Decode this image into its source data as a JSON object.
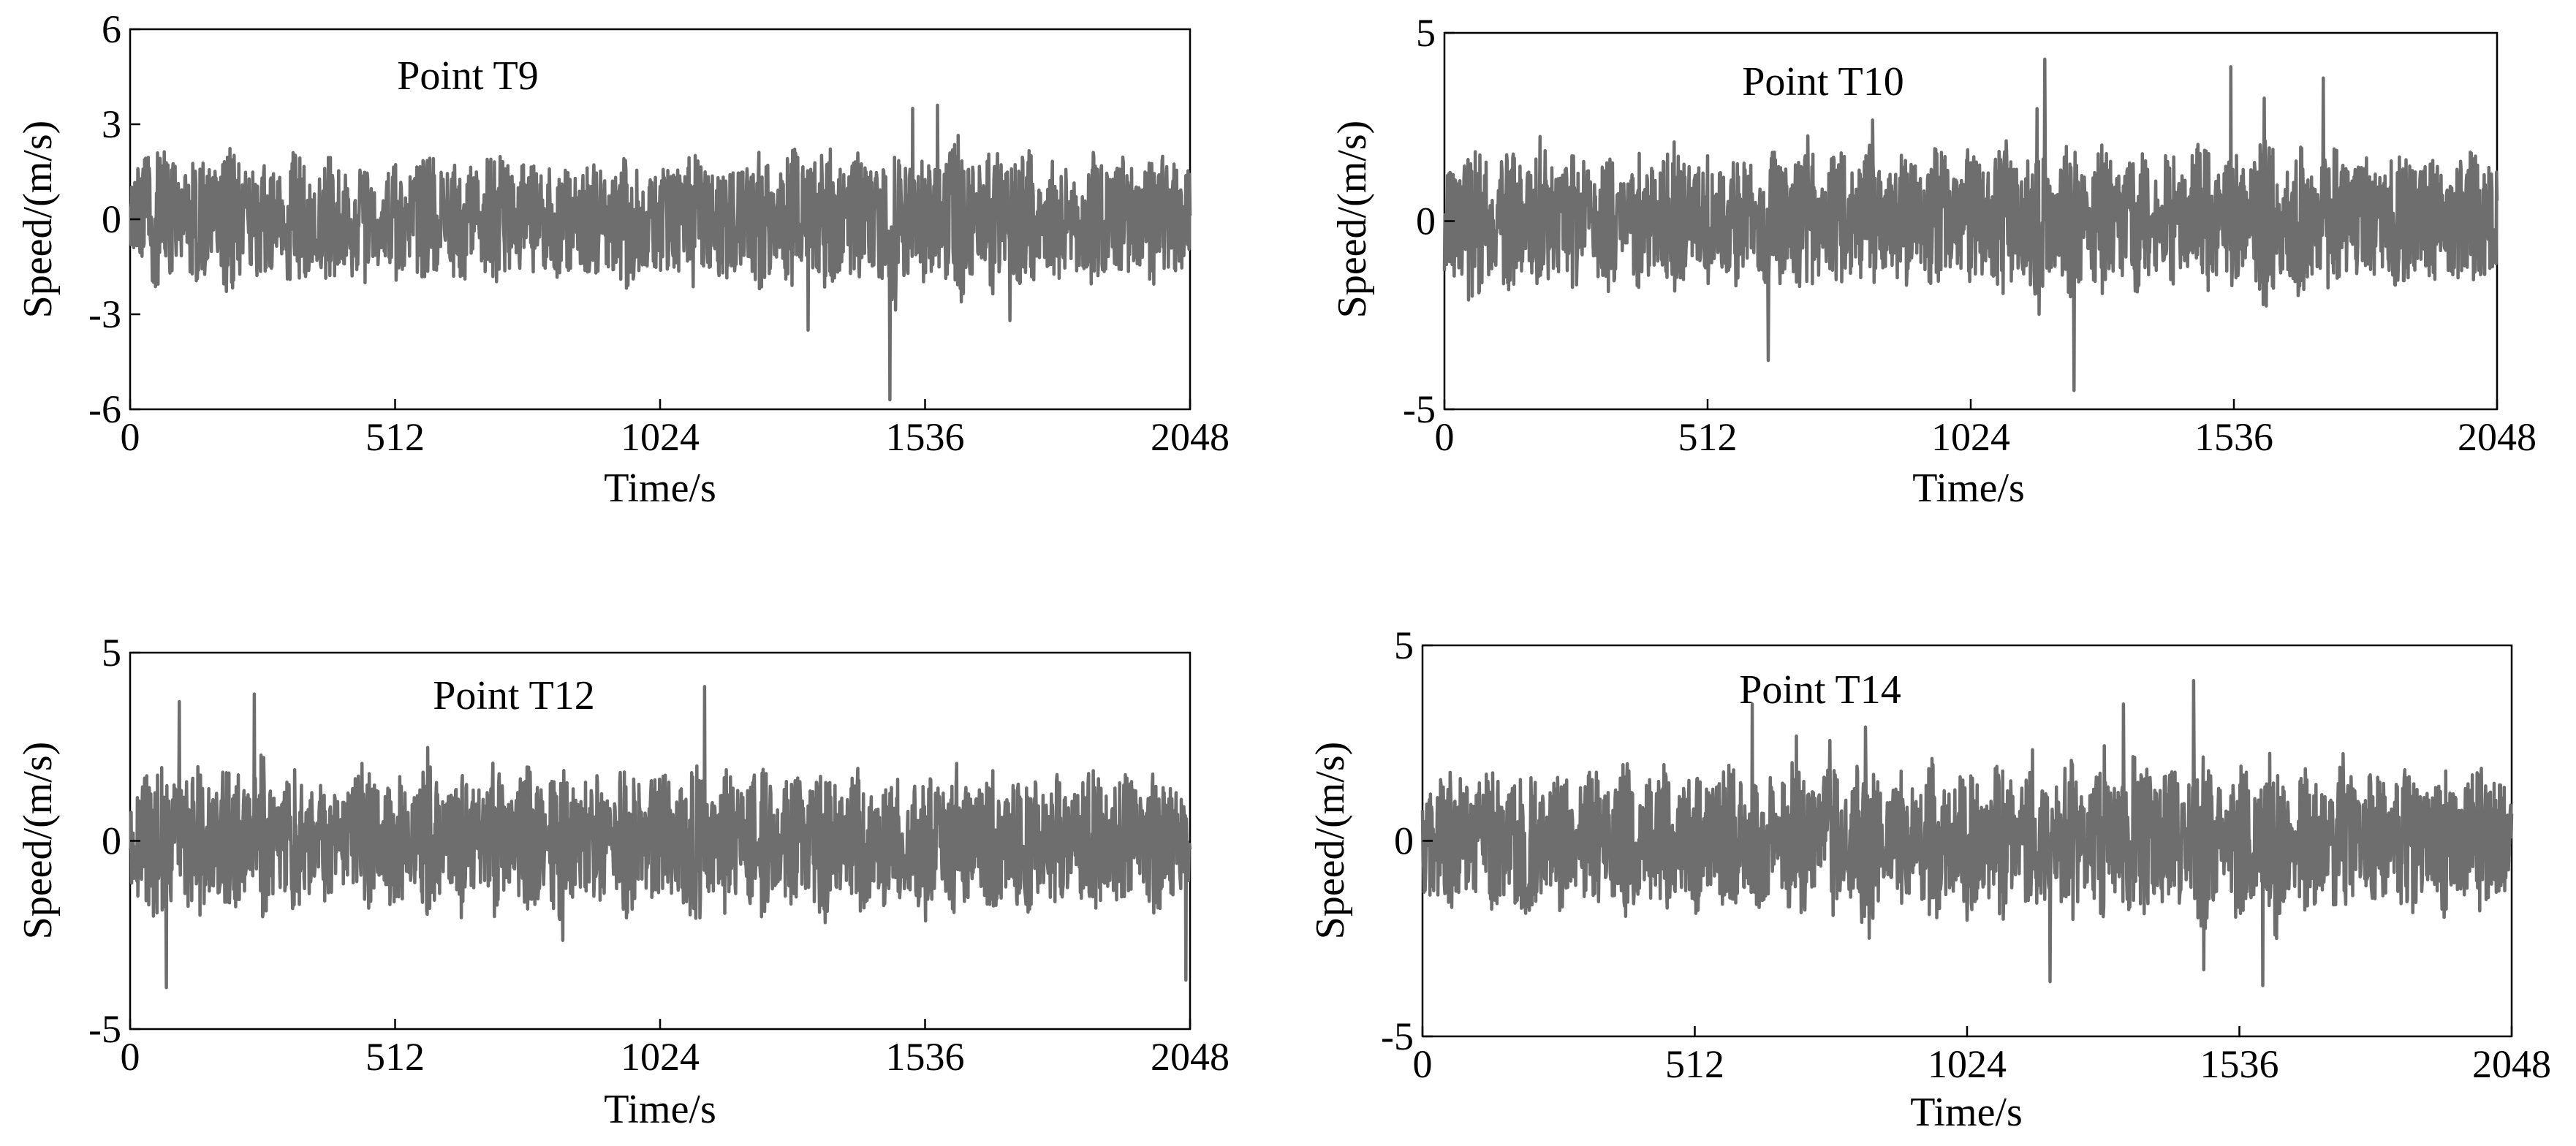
{
  "chart_data": [
    {
      "type": "line",
      "title": "Point T9",
      "xlabel": "Time/s",
      "ylabel": "Speed/(m/s)",
      "xlim": [
        0,
        2048
      ],
      "ylim": [
        -6,
        6
      ],
      "xticks": [
        0,
        512,
        1024,
        1536,
        2048
      ],
      "yticks": [
        -6,
        -3,
        0,
        3,
        6
      ],
      "grid": false,
      "series": [
        {
          "color": "#6e6e6e",
          "x": [
            0,
            64,
            128,
            192,
            256,
            320,
            384,
            448,
            512,
            576,
            640,
            704,
            768,
            832,
            896,
            960,
            1024,
            1088,
            1152,
            1216,
            1280,
            1344,
            1408,
            1472,
            1536,
            1600,
            1664,
            1728,
            1792,
            1856,
            1920,
            1984,
            2048
          ],
          "y": [
            0.5,
            2.3,
            -2.0,
            2.5,
            -1.8,
            2.2,
            -1.5,
            1.9,
            -1.4,
            2.0,
            -2.1,
            2.2,
            -1.3,
            1.8,
            -1.6,
            2.4,
            -1.2,
            2.0,
            -1.7,
            2.5,
            -2.6,
            2.8,
            -1.9,
            3.2,
            -2.0,
            3.5,
            -2.8,
            2.6,
            -1.9,
            2.1,
            -1.5,
            2.0,
            -0.3
          ],
          "extremes": [
            {
              "x": 1468,
              "y": -5.7
            },
            {
              "x": 1512,
              "y": 3.5
            },
            {
              "x": 1560,
              "y": 3.6
            },
            {
              "x": 1310,
              "y": -3.5
            },
            {
              "x": 1700,
              "y": -3.2
            }
          ]
        }
      ]
    },
    {
      "type": "line",
      "title": "Point T10",
      "xlabel": "Time/s",
      "ylabel": "Speed/(m/s)",
      "xlim": [
        0,
        2048
      ],
      "ylim": [
        -5,
        5
      ],
      "xticks": [
        0,
        512,
        1024,
        1536,
        2048
      ],
      "yticks": [
        -5,
        0,
        5
      ],
      "grid": false,
      "series": [
        {
          "color": "#6e6e6e",
          "x": [
            0,
            64,
            128,
            192,
            256,
            320,
            384,
            448,
            512,
            576,
            640,
            704,
            768,
            832,
            896,
            960,
            1024,
            1088,
            1152,
            1216,
            1280,
            1344,
            1408,
            1472,
            1536,
            1600,
            1664,
            1728,
            1792,
            1856,
            1920,
            1984,
            2048
          ],
          "y": [
            0.4,
            2.5,
            -2.3,
            2.6,
            -2.1,
            2.2,
            -2.0,
            2.8,
            -1.8,
            2.1,
            -2.3,
            2.6,
            -2.4,
            2.7,
            -2.2,
            2.5,
            -2.6,
            3.2,
            -3.3,
            3.0,
            -2.4,
            2.9,
            -2.3,
            2.8,
            -1.9,
            3.4,
            -2.5,
            2.4,
            -1.8,
            2.2,
            -1.6,
            2.1,
            0.2
          ],
          "extremes": [
            {
              "x": 1168,
              "y": 4.3
            },
            {
              "x": 1225,
              "y": -4.5
            },
            {
              "x": 630,
              "y": -3.7
            },
            {
              "x": 1530,
              "y": 4.1
            },
            {
              "x": 1710,
              "y": 3.8
            }
          ]
        }
      ]
    },
    {
      "type": "line",
      "title": "Point T12",
      "xlabel": "Time/s",
      "ylabel": "Speed/(m/s)",
      "xlim": [
        0,
        2048
      ],
      "ylim": [
        -5,
        5
      ],
      "xticks": [
        0,
        512,
        1024,
        1536,
        2048
      ],
      "yticks": [
        -5,
        0,
        5
      ],
      "grid": false,
      "series": [
        {
          "color": "#6e6e6e",
          "x": [
            0,
            64,
            128,
            192,
            256,
            320,
            384,
            448,
            512,
            576,
            640,
            704,
            768,
            832,
            896,
            960,
            1024,
            1088,
            1152,
            1216,
            1280,
            1344,
            1408,
            1472,
            1536,
            1600,
            1664,
            1728,
            1792,
            1856,
            1920,
            1984,
            2048
          ],
          "y": [
            0.3,
            2.6,
            -2.8,
            2.9,
            -2.4,
            2.5,
            -2.2,
            2.7,
            -2.1,
            2.4,
            -2.0,
            2.6,
            -2.6,
            2.8,
            -2.3,
            2.9,
            -2.5,
            3.0,
            -2.4,
            2.7,
            -2.2,
            2.9,
            -2.5,
            2.8,
            -2.7,
            2.6,
            -2.2,
            2.4,
            -1.9,
            2.3,
            -2.0,
            2.2,
            -0.5
          ],
          "extremes": [
            {
              "x": 70,
              "y": -3.9
            },
            {
              "x": 95,
              "y": 3.7
            },
            {
              "x": 240,
              "y": 3.9
            },
            {
              "x": 1110,
              "y": 4.1
            },
            {
              "x": 2040,
              "y": -3.7
            }
          ]
        }
      ]
    },
    {
      "type": "line",
      "title": "Point T14",
      "xlabel": "Time/s",
      "ylabel": "Speed/(m/s)",
      "xlim": [
        0,
        2048
      ],
      "ylim": [
        -5,
        5
      ],
      "xticks": [
        0,
        512,
        1024,
        1536,
        2048
      ],
      "yticks": [
        -5,
        0,
        5
      ],
      "grid": false,
      "series": [
        {
          "color": "#6e6e6e",
          "x": [
            0,
            64,
            128,
            192,
            256,
            320,
            384,
            448,
            512,
            576,
            640,
            704,
            768,
            832,
            896,
            960,
            1024,
            1088,
            1152,
            1216,
            1280,
            1344,
            1408,
            1472,
            1536,
            1600,
            1664,
            1728,
            1792,
            1856,
            1920,
            1984,
            2048
          ],
          "y": [
            0.2,
            2.0,
            -2.2,
            2.3,
            -1.8,
            2.0,
            -2.3,
            2.6,
            -2.0,
            2.4,
            -2.4,
            3.0,
            -2.6,
            3.1,
            -2.2,
            2.7,
            -2.3,
            2.6,
            -2.8,
            2.9,
            -2.5,
            3.4,
            -2.6,
            3.6,
            -2.9,
            2.8,
            -2.4,
            2.5,
            -2.0,
            2.3,
            -1.9,
            2.0,
            0.0
          ],
          "extremes": [
            {
              "x": 1318,
              "y": 3.5
            },
            {
              "x": 1450,
              "y": 4.1
            },
            {
              "x": 1580,
              "y": -3.7
            },
            {
              "x": 620,
              "y": 3.5
            },
            {
              "x": 1180,
              "y": -3.6
            }
          ]
        }
      ]
    }
  ]
}
